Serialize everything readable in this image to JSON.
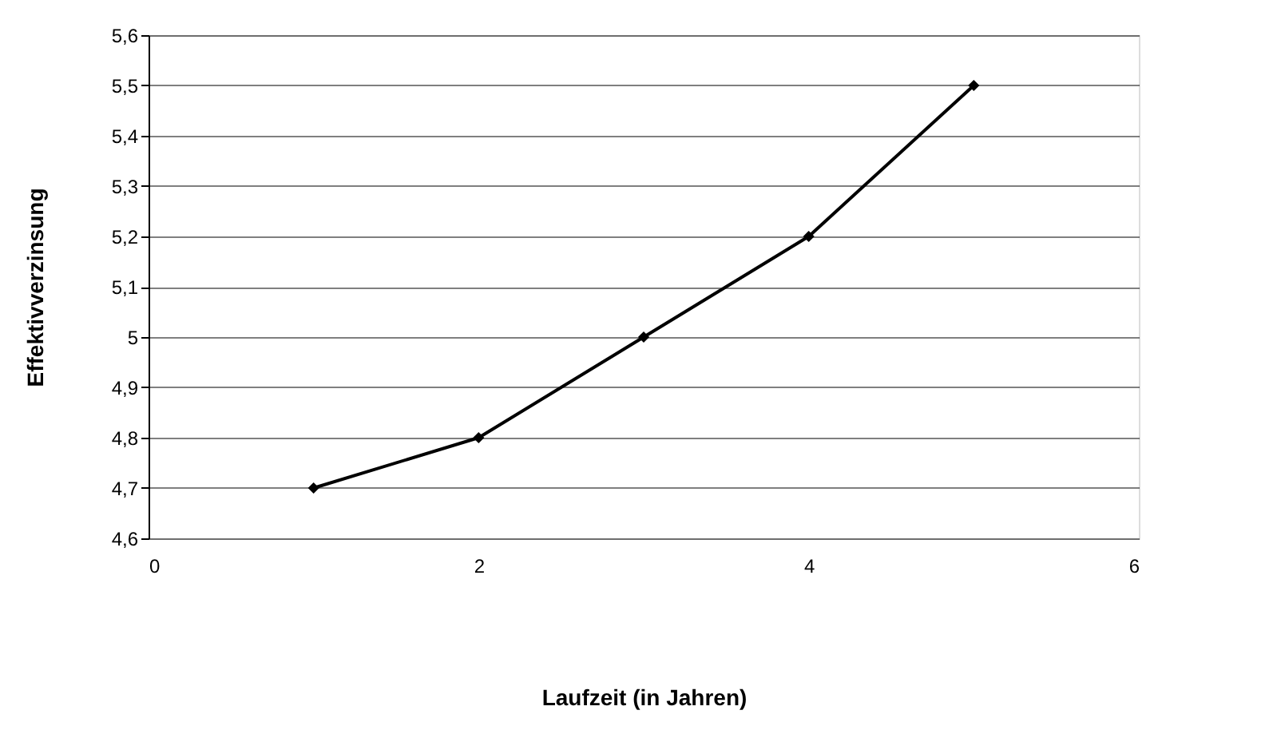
{
  "chart_data": {
    "type": "line",
    "xlabel": "Laufzeit (in Jahren)",
    "ylabel": "Effektivverzinsung",
    "x": [
      1,
      2,
      3,
      4,
      5
    ],
    "series": [
      {
        "color": "#000000",
        "values": [
          4.7,
          4.8,
          5.0,
          5.2,
          5.5
        ]
      }
    ],
    "xlim": [
      0,
      6
    ],
    "xticks": [
      0,
      2,
      4,
      6
    ],
    "ylim": [
      4.6,
      5.6
    ],
    "yticks": [
      {
        "value": 4.6,
        "label": "4,6"
      },
      {
        "value": 4.7,
        "label": "4,7"
      },
      {
        "value": 4.8,
        "label": "4,8"
      },
      {
        "value": 4.9,
        "label": "4,9"
      },
      5,
      {
        "value": 5.1,
        "label": "5,1"
      },
      {
        "value": 5.2,
        "label": "5,2"
      },
      {
        "value": 5.3,
        "label": "5,3"
      },
      {
        "value": 5.4,
        "label": "5,4"
      },
      {
        "value": 5.5,
        "label": "5,5"
      },
      {
        "value": 5.6,
        "label": "5,6"
      }
    ],
    "grid": "y",
    "legend": false,
    "marker": "diamond",
    "line_style": "solid"
  }
}
